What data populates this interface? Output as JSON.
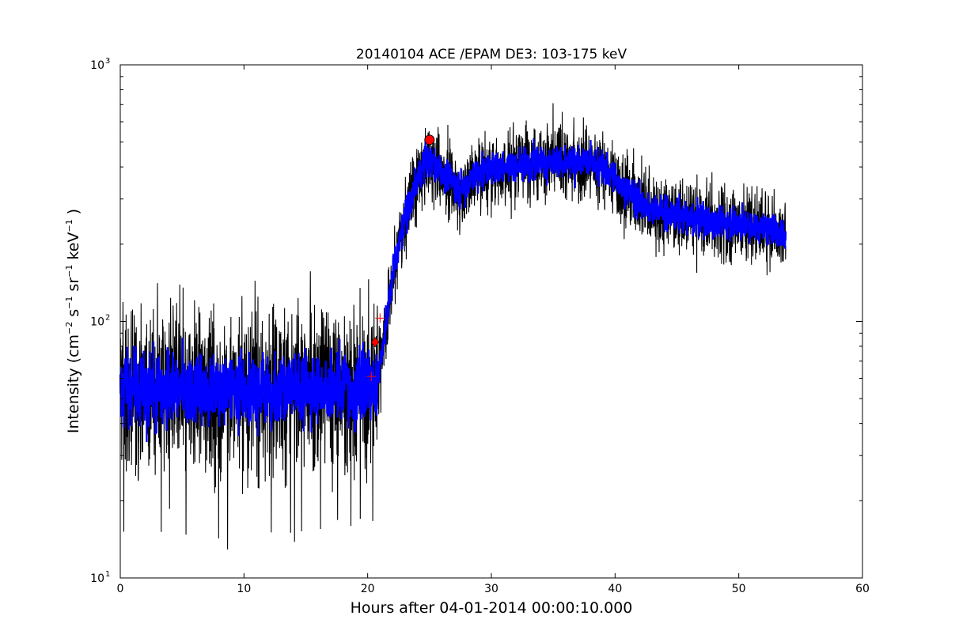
{
  "chart_data": {
    "type": "line",
    "title": "20140104 ACE /EPAM DE3: 103-175 keV",
    "xlabel": "Hours after 04-01-2014 00:00:10.000",
    "ylabel": {
      "prefix": "Intensity (cm",
      "exp1": "−2",
      "s": " s",
      "exp2": "−1",
      "sr": " sr",
      "exp3": "−1",
      "kev": " keV",
      "exp4": "−1",
      "suffix": " )"
    },
    "xlim": [
      0,
      60
    ],
    "ylim": [
      10,
      1000
    ],
    "yscale": "log",
    "grid": false,
    "x_ticks": [
      0,
      10,
      20,
      30,
      40,
      50,
      60
    ],
    "x_tick_labels": [
      "0",
      "10",
      "20",
      "30",
      "40",
      "50",
      "60"
    ],
    "y_ticks": [
      10,
      100,
      1000
    ],
    "y_tick_labels": [
      {
        "base": "10",
        "exp": "1"
      },
      {
        "base": "10",
        "exp": "2"
      },
      {
        "base": "10",
        "exp": "3"
      }
    ],
    "trend": {
      "x": [
        0,
        5,
        10,
        15,
        20,
        20.6,
        21.0,
        21.4,
        21.8,
        22.2,
        22.8,
        23.4,
        24.0,
        24.6,
        25.2,
        26.0,
        26.8,
        27.5,
        28.2,
        29.0,
        30,
        32,
        34,
        36,
        37.5,
        39,
        40,
        41,
        42,
        43,
        44,
        45,
        46,
        47,
        48,
        49,
        50,
        51,
        52,
        53,
        53.8
      ],
      "y": [
        55,
        54,
        54,
        55,
        55,
        56,
        68,
        92,
        125,
        170,
        230,
        290,
        350,
        410,
        420,
        380,
        350,
        320,
        355,
        380,
        390,
        410,
        420,
        415,
        420,
        400,
        360,
        320,
        290,
        275,
        265,
        260,
        250,
        250,
        245,
        240,
        240,
        235,
        230,
        225,
        215
      ]
    },
    "series": [
      {
        "style": "raw",
        "color": "#000000"
      },
      {
        "style": "smoothed",
        "color": "#0000ff"
      }
    ],
    "markers": [
      {
        "type": "circle",
        "x": 25.0,
        "y": 510,
        "color": "#ff0000"
      },
      {
        "type": "diamond",
        "x": 20.6,
        "y": 83,
        "color": "#ff0000"
      },
      {
        "type": "plus",
        "x": 20.3,
        "y": 61,
        "color": "#ff0000"
      },
      {
        "type": "plus",
        "x": 21.0,
        "y": 103,
        "color": "#ff0000"
      }
    ]
  }
}
